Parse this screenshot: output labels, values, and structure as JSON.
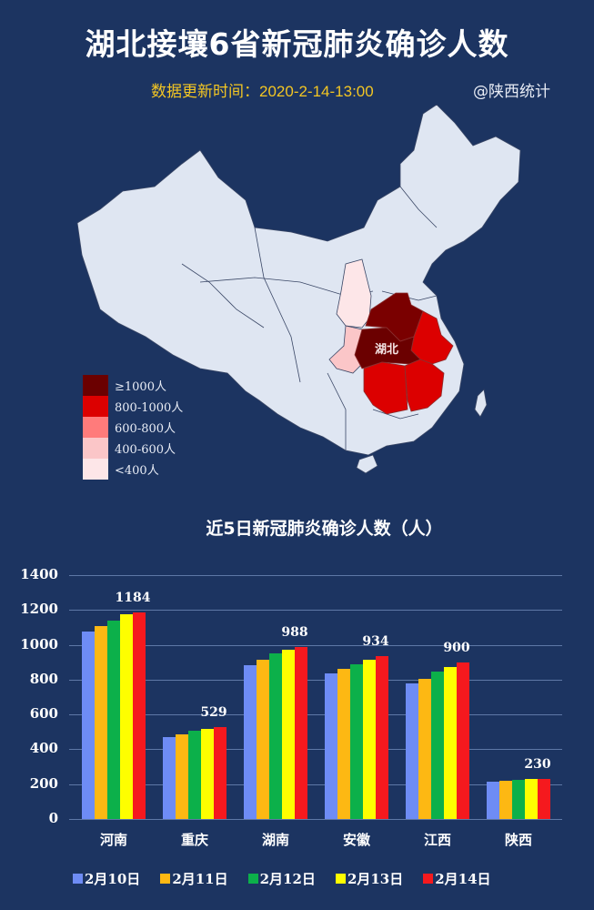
{
  "header": {
    "title": "湖北接壤6省新冠肺炎确诊人数",
    "update_time": "数据更新时间：2020-2-14-13:00",
    "source": "@陕西统计"
  },
  "map": {
    "center_label": "湖北",
    "legend": [
      {
        "label": "≥1000人",
        "color": "#6b0000"
      },
      {
        "label": "800-1000人",
        "color": "#dc0000"
      },
      {
        "label": "600-800人",
        "color": "#ff7b7b"
      },
      {
        "label": "400-600人",
        "color": "#fbc6c8"
      },
      {
        "label": "<400人",
        "color": "#fde6e8"
      }
    ],
    "province_colors": {
      "湖北": "#6b0000",
      "河南": "#7a0000",
      "安徽": "#dc0000",
      "湖南": "#dc0000",
      "江西": "#dc0000",
      "重庆": "#fbc6c8",
      "陕西": "#fde6e8",
      "other": "#dfe6f2"
    }
  },
  "chart_data": {
    "type": "bar",
    "title": "近5日新冠肺炎确诊人数（人）",
    "xlabel": "",
    "ylabel": "",
    "ylim": [
      0,
      1400
    ],
    "yticks": [
      "0",
      "200",
      "400",
      "600",
      "800",
      "1000",
      "1200",
      "1400"
    ],
    "grid": true,
    "legend_position": "bottom",
    "categories": [
      "河南",
      "重庆",
      "湖南",
      "安徽",
      "江西",
      "陕西"
    ],
    "series": [
      {
        "name": "2月10日",
        "color": "#6e8cf5",
        "values": [
          1078,
          471,
          881,
          834,
          776,
          215
        ]
      },
      {
        "name": "2月11日",
        "color": "#fdb813",
        "values": [
          1106,
          488,
          914,
          862,
          806,
          220
        ]
      },
      {
        "name": "2月12日",
        "color": "#0cb04a",
        "values": [
          1138,
          508,
          949,
          890,
          848,
          225
        ]
      },
      {
        "name": "2月13日",
        "color": "#fefe00",
        "values": [
          1173,
          518,
          972,
          912,
          874,
          229
        ]
      },
      {
        "name": "2月14日",
        "color": "#f5191e",
        "values": [
          1184,
          529,
          988,
          934,
          900,
          230
        ]
      }
    ],
    "data_labels": [
      "1184",
      "529",
      "988",
      "934",
      "900",
      "230"
    ]
  }
}
